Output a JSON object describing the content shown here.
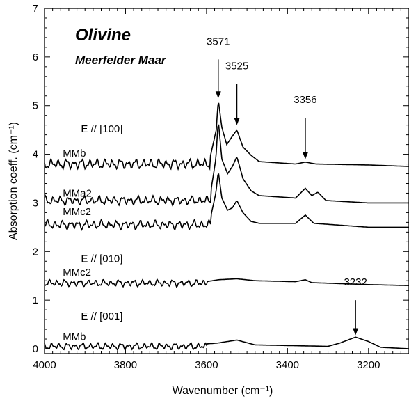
{
  "chart_data": {
    "type": "line",
    "title": "Olivine",
    "subtitle": "Meerfelder Maar",
    "xlabel": "Wavenumber (cm⁻¹)",
    "ylabel": "Absorption coeff. (cm⁻¹)",
    "xlim": [
      4000,
      3100
    ],
    "ylim": [
      -0.1,
      7
    ],
    "x_reversed": true,
    "x_ticks": [
      4000,
      3800,
      3600,
      3400,
      3200
    ],
    "y_ticks": [
      0,
      1,
      2,
      3,
      4,
      5,
      6,
      7
    ],
    "legend": "none",
    "series": [
      {
        "name": "MMb",
        "group": "E // [100]",
        "baseline": 3.8,
        "end": 3.75,
        "noise": 0.12,
        "points": [
          [
            3592,
            3.9
          ],
          [
            3576,
            4.5
          ],
          [
            3571,
            5.12
          ],
          [
            3562,
            4.55
          ],
          [
            3550,
            4.2
          ],
          [
            3538,
            4.35
          ],
          [
            3525,
            4.5
          ],
          [
            3510,
            4.15
          ],
          [
            3490,
            3.98
          ],
          [
            3470,
            3.85
          ],
          [
            3380,
            3.8
          ],
          [
            3356,
            3.84
          ],
          [
            3330,
            3.8
          ],
          [
            3200,
            3.78
          ],
          [
            3100,
            3.75
          ]
        ]
      },
      {
        "name": "MMa2",
        "group": "E // [100]",
        "baseline": 3.05,
        "end": 3.0,
        "noise": 0.1,
        "points": [
          [
            3590,
            3.2
          ],
          [
            3577,
            3.9
          ],
          [
            3571,
            4.7
          ],
          [
            3562,
            3.9
          ],
          [
            3548,
            3.6
          ],
          [
            3536,
            3.75
          ],
          [
            3525,
            3.95
          ],
          [
            3510,
            3.5
          ],
          [
            3490,
            3.25
          ],
          [
            3470,
            3.15
          ],
          [
            3380,
            3.1
          ],
          [
            3356,
            3.3
          ],
          [
            3340,
            3.15
          ],
          [
            3325,
            3.22
          ],
          [
            3305,
            3.05
          ],
          [
            3200,
            3.0
          ],
          [
            3100,
            3.0
          ]
        ]
      },
      {
        "name": "MMc2",
        "group": "E // [100]",
        "baseline": 2.55,
        "end": 2.5,
        "noise": 0.1,
        "points": [
          [
            3590,
            2.7
          ],
          [
            3577,
            3.2
          ],
          [
            3571,
            3.65
          ],
          [
            3562,
            3.1
          ],
          [
            3548,
            2.85
          ],
          [
            3536,
            2.9
          ],
          [
            3525,
            3.05
          ],
          [
            3510,
            2.8
          ],
          [
            3490,
            2.62
          ],
          [
            3470,
            2.58
          ],
          [
            3380,
            2.58
          ],
          [
            3356,
            2.75
          ],
          [
            3335,
            2.58
          ],
          [
            3200,
            2.5
          ],
          [
            3100,
            2.5
          ]
        ]
      },
      {
        "name": "MMc2",
        "group": "E // [010]",
        "baseline": 1.35,
        "end": 1.3,
        "noise": 0.08,
        "points": [
          [
            3600,
            1.38
          ],
          [
            3571,
            1.42
          ],
          [
            3525,
            1.44
          ],
          [
            3480,
            1.4
          ],
          [
            3380,
            1.38
          ],
          [
            3356,
            1.42
          ],
          [
            3340,
            1.36
          ],
          [
            3200,
            1.32
          ],
          [
            3100,
            1.3
          ]
        ]
      },
      {
        "name": "MMb",
        "group": "E // [001]",
        "baseline": 0.05,
        "end": 0.0,
        "noise": 0.08,
        "points": [
          [
            3600,
            0.1
          ],
          [
            3571,
            0.12
          ],
          [
            3525,
            0.18
          ],
          [
            3480,
            0.08
          ],
          [
            3300,
            0.05
          ],
          [
            3270,
            0.12
          ],
          [
            3232,
            0.24
          ],
          [
            3200,
            0.15
          ],
          [
            3170,
            0.03
          ],
          [
            3100,
            0.0
          ]
        ]
      }
    ],
    "annotations": [
      {
        "text": "E // [100]",
        "x": 3910,
        "y": 4.45
      },
      {
        "text": "MMb",
        "x": 3955,
        "y": 3.95
      },
      {
        "text": "MMa2",
        "x": 3955,
        "y": 3.13
      },
      {
        "text": "MMc2",
        "x": 3955,
        "y": 2.75
      },
      {
        "text": "E // [010]",
        "x": 3910,
        "y": 1.78
      },
      {
        "text": "MMc2",
        "x": 3955,
        "y": 1.5
      },
      {
        "text": "E // [001]",
        "x": 3910,
        "y": 0.6
      },
      {
        "text": "MMb",
        "x": 3955,
        "y": 0.18
      }
    ],
    "peak_labels": [
      {
        "text": "3571",
        "x": 3571,
        "label_y": 6.25,
        "arrow_from": 5.95,
        "arrow_to": 5.15
      },
      {
        "text": "3525",
        "x": 3525,
        "label_y": 5.75,
        "arrow_from": 5.45,
        "arrow_to": 4.6
      },
      {
        "text": "3356",
        "x": 3356,
        "label_y": 5.05,
        "arrow_from": 4.75,
        "arrow_to": 3.9
      },
      {
        "text": "3232",
        "x": 3232,
        "label_y": 1.3,
        "arrow_from": 1.0,
        "arrow_to": 0.28
      }
    ]
  }
}
